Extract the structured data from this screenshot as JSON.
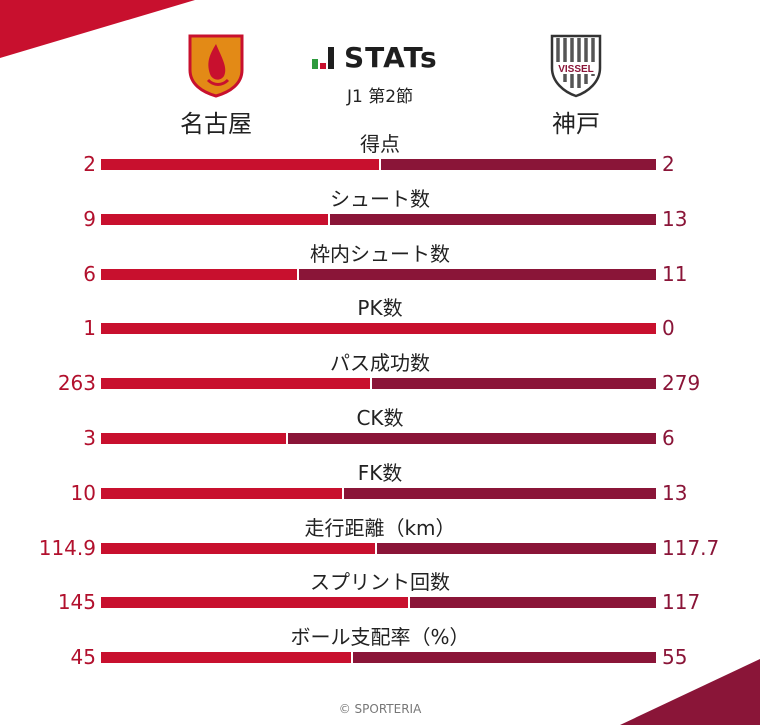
{
  "header": {
    "brand": "STATs",
    "match_round": "J1 第2節",
    "home_team": "名古屋",
    "away_team": "神戸",
    "away_crest_text": "VISSEL"
  },
  "colors": {
    "home": "#c8102e",
    "away": "#8a1538",
    "accent_green": "#2e9b3e"
  },
  "chart_data": {
    "type": "bar",
    "categories": [
      "得点",
      "シュート数",
      "枠内シュート数",
      "PK数",
      "パス成功数",
      "CK数",
      "FK数",
      "走行距離（km）",
      "スプリント回数",
      "ボール支配率（%）"
    ],
    "series": [
      {
        "name": "名古屋",
        "values": [
          2,
          9,
          6,
          1,
          263,
          3,
          10,
          114.9,
          145,
          45
        ]
      },
      {
        "name": "神戸",
        "values": [
          2,
          13,
          11,
          0,
          279,
          6,
          13,
          117.7,
          117,
          55
        ]
      }
    ],
    "labels_home": [
      "2",
      "9",
      "6",
      "1",
      "263",
      "3",
      "10",
      "114.9",
      "145",
      "45"
    ],
    "labels_away": [
      "2",
      "13",
      "11",
      "0",
      "279",
      "6",
      "13",
      "117.7",
      "117",
      "55"
    ],
    "orientation": "horizontal-diverging"
  },
  "footer": "© SPORTERIA"
}
